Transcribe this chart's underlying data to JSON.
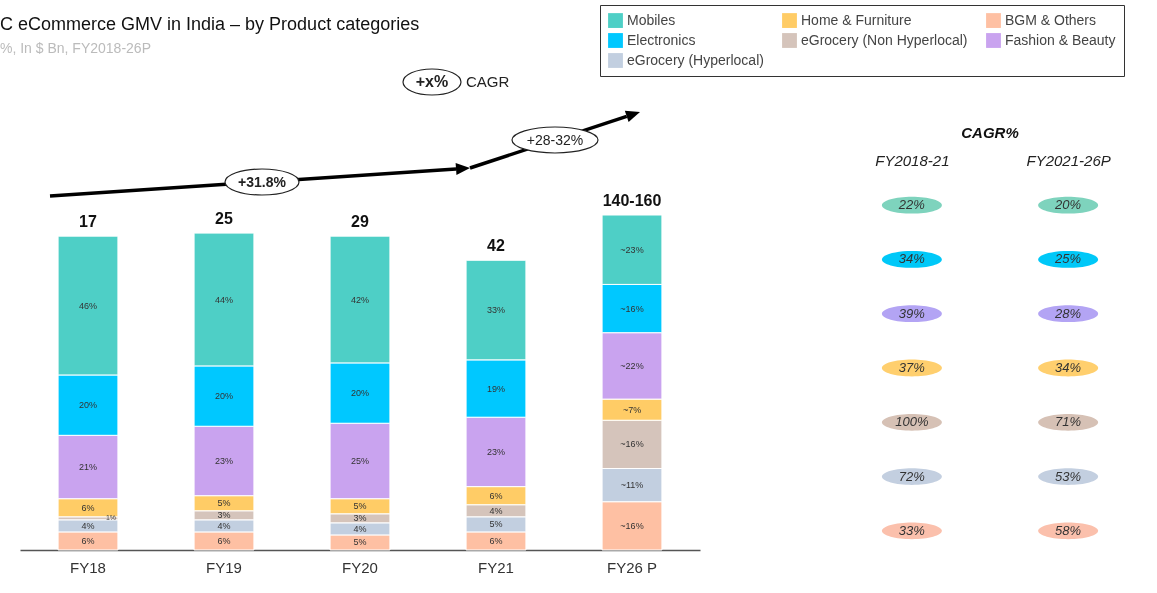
{
  "chart_data": [
    {
      "type": "bar",
      "title": "C eCommerce GMV in India – by Product categories",
      "subtitle": "%, In $ Bn, FY2018-26P",
      "categories": [
        "FY18",
        "FY19",
        "FY20",
        "FY21",
        "FY26 P"
      ],
      "stacked": true,
      "legend": "top right",
      "series": [
        {
          "name": "BGM & Others",
          "color": "#fec0a3",
          "values": [
            6,
            6,
            5,
            6,
            16
          ],
          "value_labels": [
            "6%",
            "6%",
            "5%",
            "6%",
            "~16%"
          ]
        },
        {
          "name": "eGrocery (Hyperlocal)",
          "color": "#c2cfe0",
          "values": [
            4,
            4,
            4,
            5,
            11
          ],
          "value_labels": [
            "4%",
            "4%",
            "4%",
            "5%",
            "~11%"
          ]
        },
        {
          "name": "eGrocery (Non Hyperlocal)",
          "color": "#d5c4bb",
          "values": [
            1,
            3,
            3,
            4,
            16
          ],
          "value_labels": [
            "1%",
            "3%",
            "3%",
            "4%",
            "~16%"
          ]
        },
        {
          "name": "Home & Furniture",
          "color": "#ffcc66",
          "values": [
            6,
            5,
            5,
            6,
            7
          ],
          "value_labels": [
            "6%",
            "5%",
            "5%",
            "6%",
            "~7%"
          ]
        },
        {
          "name": "Fashion & Beauty",
          "color": "#c9a3ef",
          "values": [
            21,
            23,
            25,
            23,
            22
          ],
          "value_labels": [
            "21%",
            "23%",
            "25%",
            "23%",
            "~22%"
          ]
        },
        {
          "name": "Electronics",
          "color": "#00c8ff",
          "values": [
            20,
            20,
            20,
            19,
            16
          ],
          "value_labels": [
            "20%",
            "20%",
            "20%",
            "19%",
            "~16%"
          ]
        },
        {
          "name": "Mobiles",
          "color": "#4ecfc6",
          "values": [
            46,
            44,
            42,
            33,
            23
          ],
          "value_labels": [
            "46%",
            "44%",
            "42%",
            "33%",
            "~23%"
          ]
        }
      ],
      "annotations": [
        "+x%",
        "CAGR",
        "+31.8%",
        "+28-32%",
        "17",
        "25",
        "29",
        "42",
        "140-160"
      ]
    },
    {
      "type": "other",
      "title": "CAGR%",
      "categories": [
        "FY2018-21",
        "FY2021-26P"
      ],
      "series": [
        {
          "color": "#7ed3bd",
          "values": [
            22,
            20
          ],
          "value_labels": [
            "22%",
            "20%"
          ]
        },
        {
          "color": "#00c8f8",
          "values": [
            34,
            25
          ],
          "value_labels": [
            "34%",
            "25%"
          ]
        },
        {
          "color": "#b3a4f4",
          "values": [
            39,
            28
          ],
          "value_labels": [
            "39%",
            "28%"
          ]
        },
        {
          "color": "#ffcf6e",
          "values": [
            37,
            34
          ],
          "value_labels": [
            "37%",
            "34%"
          ]
        },
        {
          "color": "#d6c1b5",
          "values": [
            100,
            71
          ],
          "value_labels": [
            "100%",
            "71%"
          ]
        },
        {
          "color": "#c3cfe0",
          "values": [
            72,
            53
          ],
          "value_labels": [
            "72%",
            "53%"
          ]
        },
        {
          "color": "#fbc0ac",
          "values": [
            33,
            58
          ],
          "value_labels": [
            "33%",
            "58%"
          ]
        }
      ]
    }
  ]
}
